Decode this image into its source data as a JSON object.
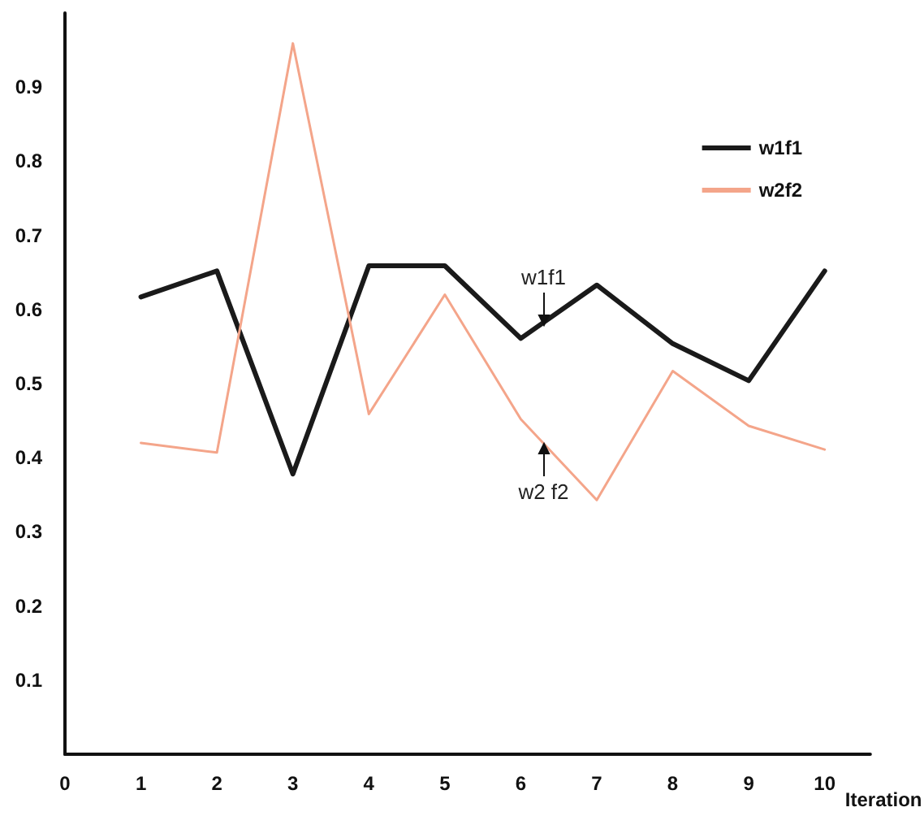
{
  "chart_data": {
    "type": "line",
    "xlabel": "Iteration",
    "x": [
      1,
      2,
      3,
      4,
      5,
      6,
      7,
      8,
      9,
      10
    ],
    "series": [
      {
        "name": "w1f1",
        "color": "#1a1a1a",
        "values": [
          0.617,
          0.652,
          0.378,
          0.659,
          0.659,
          0.561,
          0.633,
          0.554,
          0.504,
          0.652
        ]
      },
      {
        "name": "w2f2",
        "color": "#f4a58a",
        "values": [
          0.42,
          0.407,
          0.959,
          0.459,
          0.62,
          0.452,
          0.343,
          0.517,
          0.443,
          0.411
        ]
      }
    ],
    "xlim": [
      0,
      10.6
    ],
    "xticks": [
      0,
      1,
      2,
      3,
      4,
      5,
      6,
      7,
      8,
      9,
      10
    ],
    "ylim": [
      0,
      1
    ],
    "yticks": [
      0.1,
      0.2,
      0.3,
      0.4,
      0.5,
      0.6,
      0.7,
      0.8,
      0.9
    ],
    "grid": false,
    "legend": "top right",
    "marker": "none",
    "line_style": "solid",
    "annotations": [
      {
        "text": "w1f1",
        "x": 6.3,
        "y": 0.58
      },
      {
        "text": "w2 f2",
        "x": 6.3,
        "y": 0.419
      }
    ]
  }
}
